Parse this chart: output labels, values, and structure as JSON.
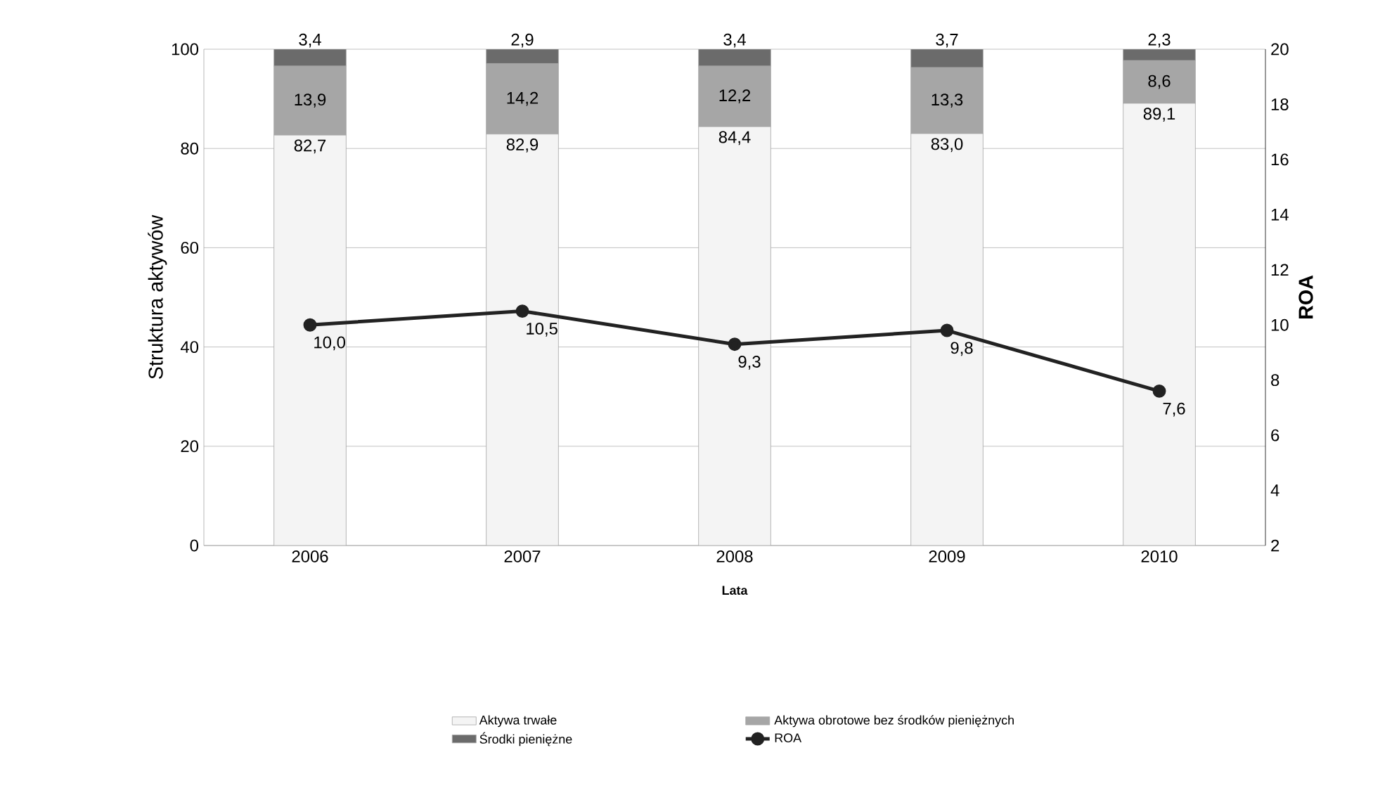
{
  "chart_data": {
    "type": "bar",
    "stacked": true,
    "xlabel": "Lata",
    "ylabel": "Struktura aktywów",
    "y2label": "ROA",
    "categories": [
      "2006",
      "2007",
      "2008",
      "2009",
      "2010"
    ],
    "series": [
      {
        "name": "Aktywa trwałe",
        "color": "#f4f4f4",
        "values": [
          82.7,
          82.9,
          84.4,
          83.0,
          89.1
        ],
        "value_labels": [
          "82,7",
          "82,9",
          "84,4",
          "83,0",
          "89,1"
        ]
      },
      {
        "name": "Aktywa obrotowe bez środków pieniężnych",
        "color": "#a6a6a6",
        "values": [
          13.9,
          14.2,
          12.2,
          13.3,
          8.6
        ],
        "value_labels": [
          "13,9",
          "14,2",
          "12,2",
          "13,3",
          "8,6"
        ]
      },
      {
        "name": "Środki pieniężne",
        "color": "#6b6b6b",
        "values": [
          3.4,
          2.9,
          3.4,
          3.7,
          2.3
        ],
        "value_labels": [
          "3,4",
          "2,9",
          "3,4",
          "3,7",
          "2,3"
        ]
      },
      {
        "name": "ROA",
        "type": "line",
        "axis": "y2",
        "color": "#222222",
        "marker": "circle",
        "values": [
          10.0,
          10.5,
          9.3,
          9.8,
          7.6
        ],
        "value_labels": [
          "10,0",
          "10,5",
          "9,3",
          "9,8",
          "7,6"
        ]
      }
    ],
    "ylim": [
      0,
      100
    ],
    "yticks": [
      0,
      20,
      40,
      60,
      80,
      100
    ],
    "y2lim": [
      2,
      20
    ],
    "y2ticks": [
      2,
      4,
      6,
      8,
      10,
      12,
      14,
      16,
      18,
      20
    ],
    "grid": "y",
    "legend": "bottom"
  }
}
